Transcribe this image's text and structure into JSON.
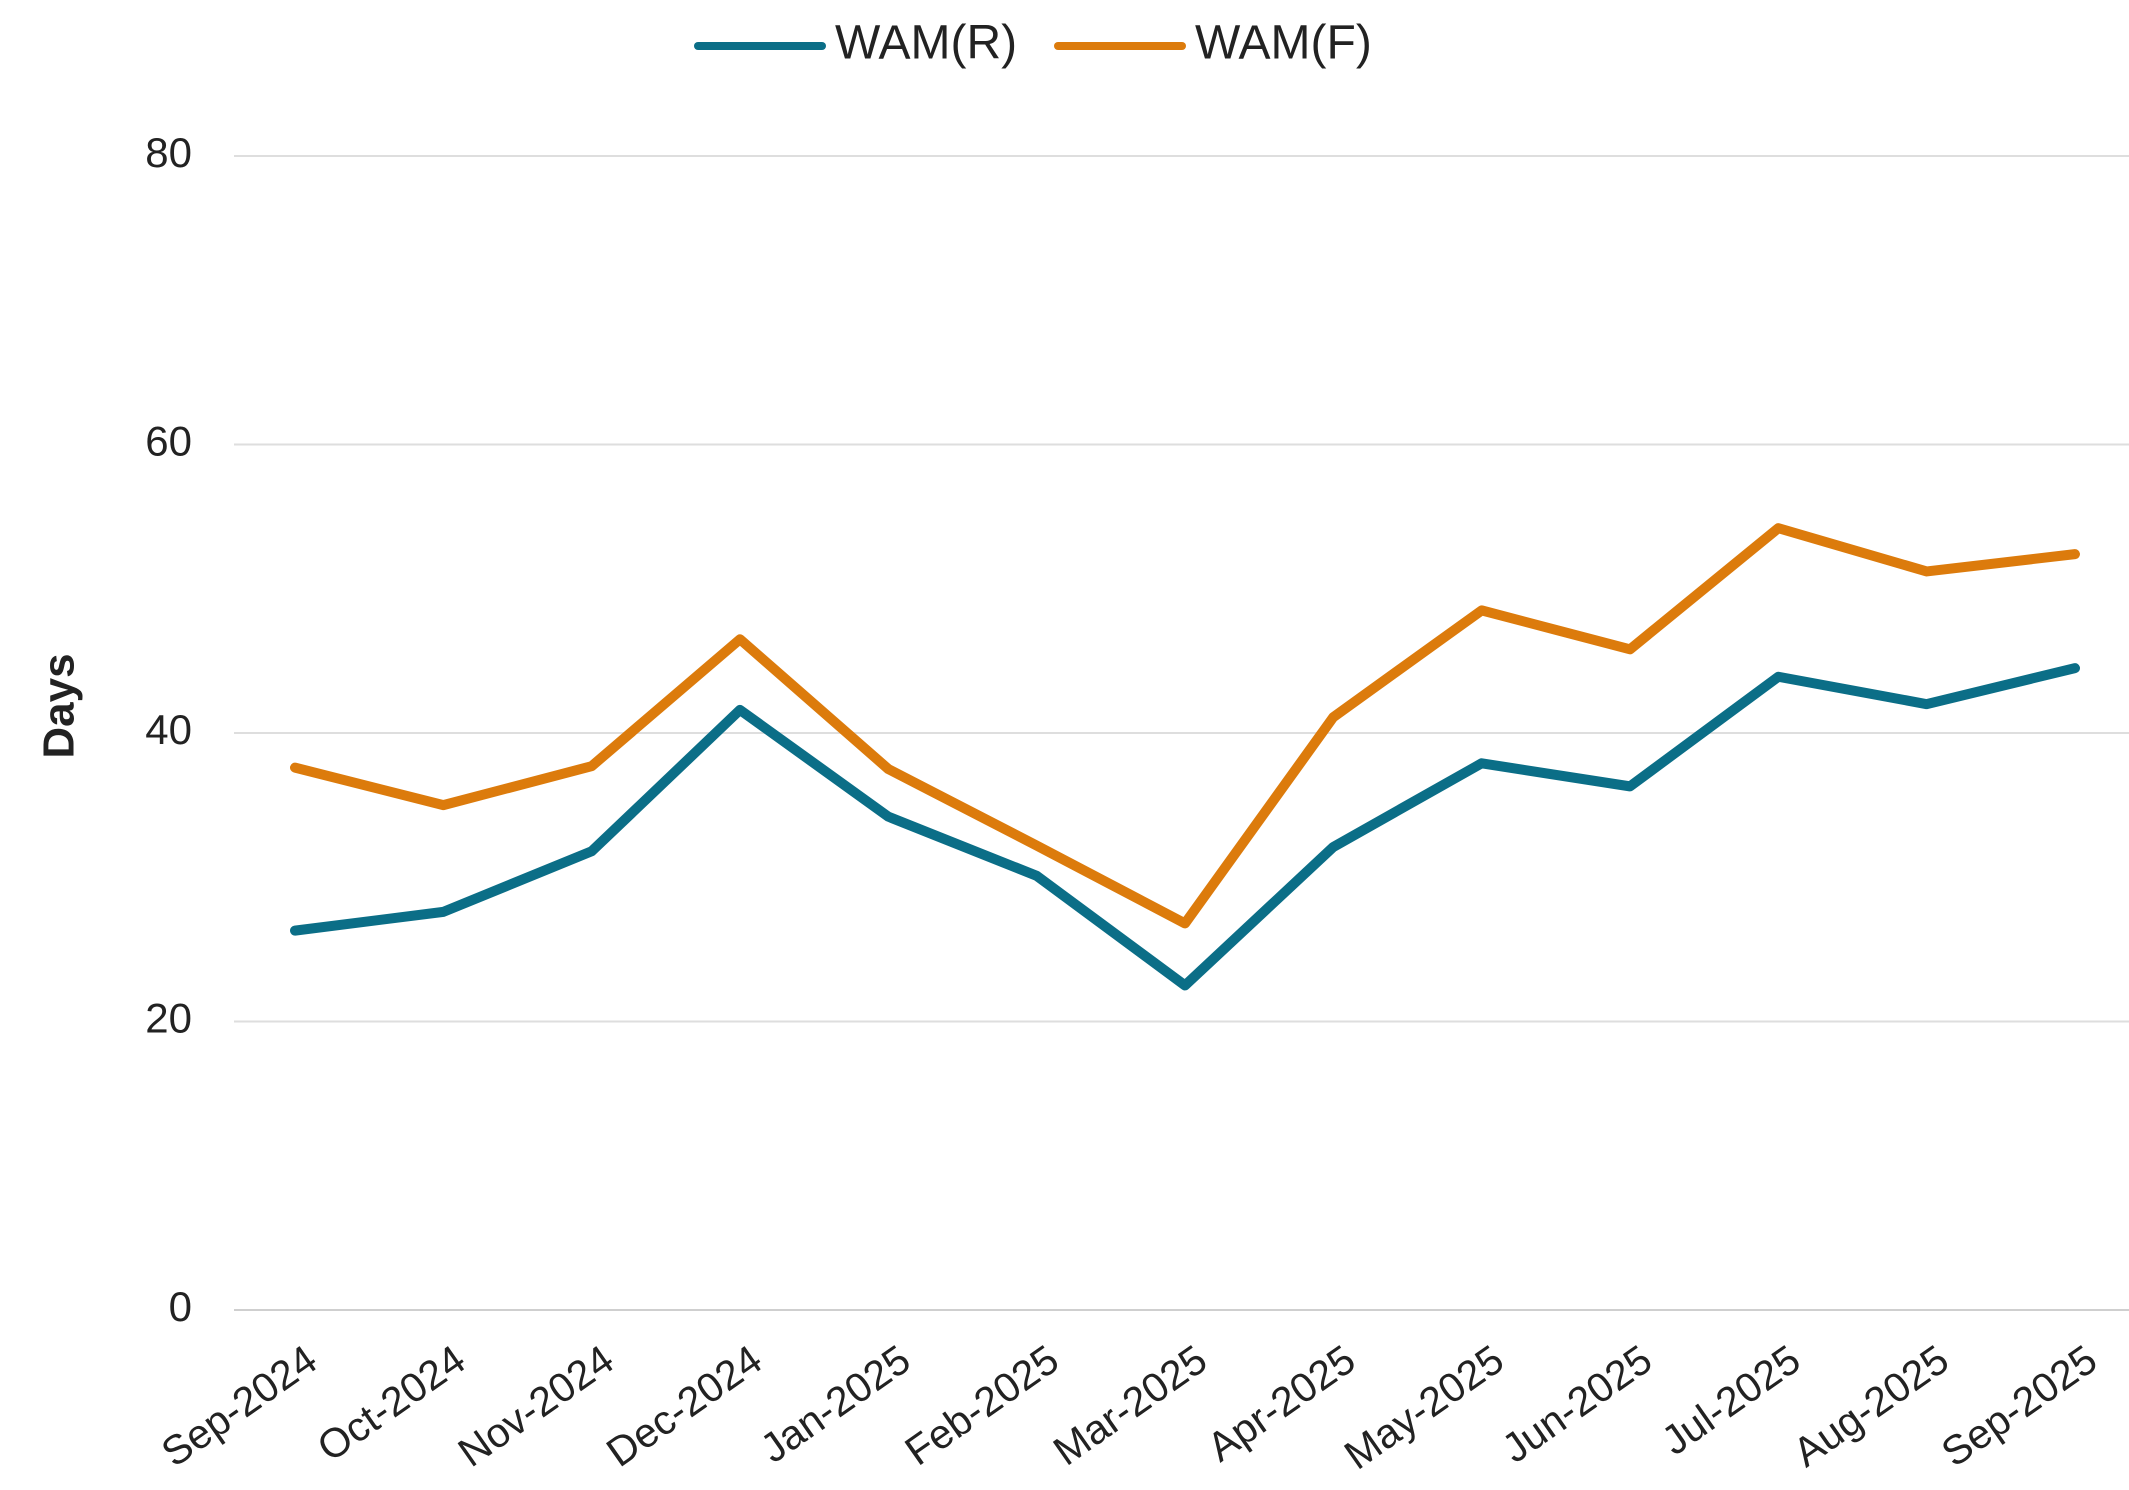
{
  "chart_data": {
    "type": "line",
    "y_label": "Days",
    "categories": [
      "Sep-2024",
      "Oct-2024",
      "Nov-2024",
      "Dec-2024",
      "Jan-2025",
      "Feb-2025",
      "Mar-2025",
      "Apr-2025",
      "May-2025",
      "Jun-2025",
      "Jul-2025",
      "Aug-2025",
      "Sep-2025"
    ],
    "series": [
      {
        "name": "WAM(R)",
        "color": "#0b6e87",
        "values": [
          26.3,
          27.6,
          31.8,
          41.6,
          34.2,
          30.1,
          22.5,
          32.1,
          37.9,
          36.3,
          43.9,
          42.0,
          44.5
        ]
      },
      {
        "name": "WAM(F)",
        "color": "#dc7b0c",
        "values": [
          37.6,
          35.0,
          37.7,
          46.5,
          37.5,
          32.2,
          26.8,
          41.1,
          48.5,
          45.8,
          54.2,
          51.2,
          52.4
        ]
      }
    ],
    "ylim": [
      0,
      80
    ],
    "yticks": [
      0,
      20,
      40,
      60,
      80
    ],
    "grid": true,
    "legend": "top"
  }
}
